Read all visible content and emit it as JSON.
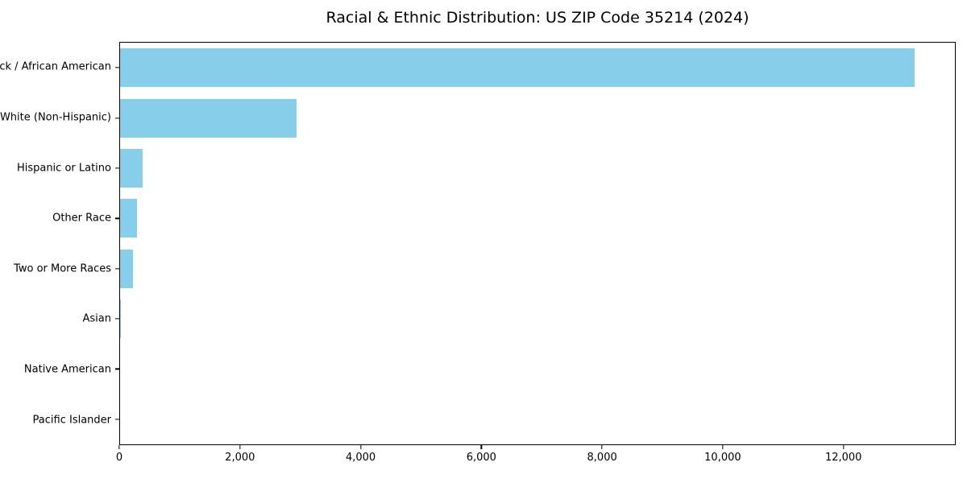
{
  "chart_data": {
    "type": "bar",
    "orientation": "horizontal",
    "title": "Racial & Ethnic Distribution: US ZIP Code 35214 (2024)",
    "xlabel": "",
    "ylabel": "",
    "categories": [
      "Black / African American",
      "White (Non-Hispanic)",
      "Hispanic or Latino",
      "Other Race",
      "Two or More Races",
      "Asian",
      "Native American",
      "Pacific Islander"
    ],
    "values": [
      13190,
      2930,
      375,
      285,
      210,
      15,
      0,
      0
    ],
    "xlim": [
      0,
      13860
    ],
    "xticks": {
      "values": [
        0,
        2000,
        4000,
        6000,
        8000,
        10000,
        12000
      ],
      "labels": [
        "0",
        "2,000",
        "4,000",
        "6,000",
        "8,000",
        "10,000",
        "12,000"
      ]
    },
    "bar_color": "#87CEEB",
    "grid": false,
    "legend": "none",
    "background": "#ffffff",
    "spine_color": "#000000"
  }
}
